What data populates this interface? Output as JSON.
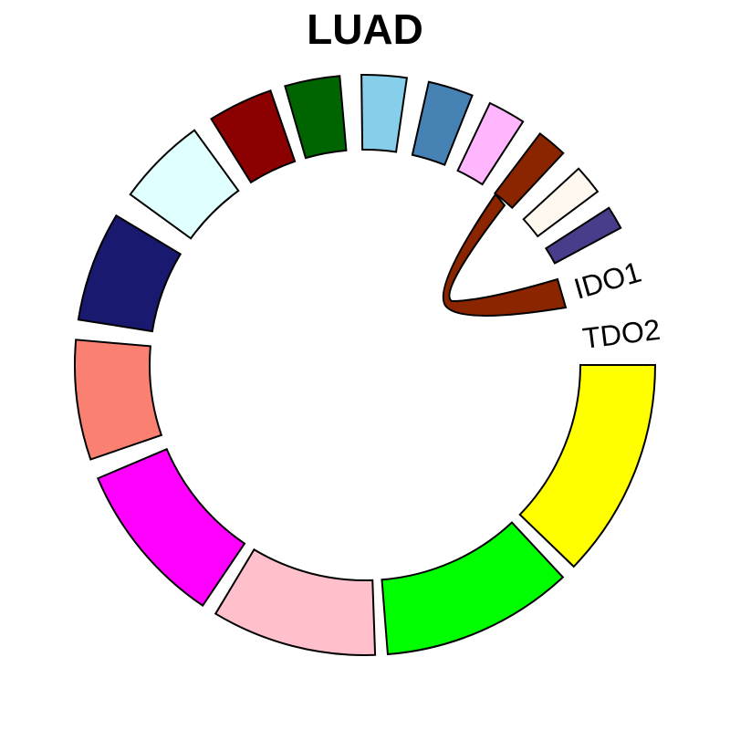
{
  "title": "LUAD",
  "labels": [
    "IDO1",
    "TDO2"
  ]
}
